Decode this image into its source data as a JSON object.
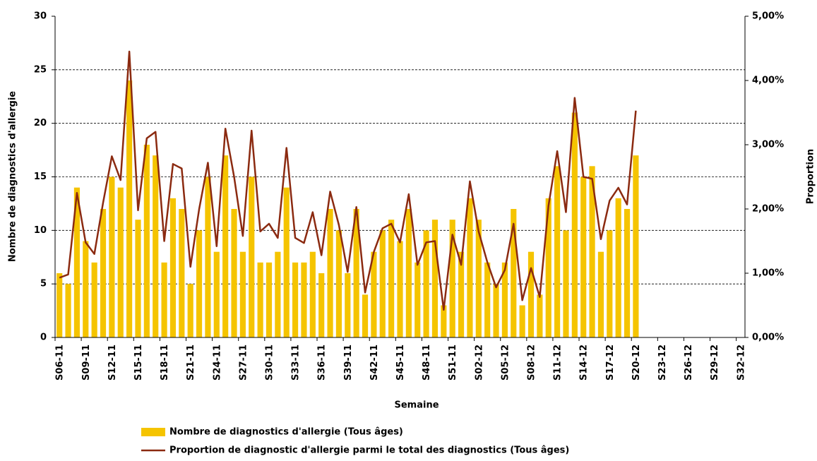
{
  "chart_data": {
    "type": "bar_line",
    "x_label": "Semaine",
    "y_label": "Nombre de diagnostics d'allergie",
    "y2_label": "Proportion",
    "categories": [
      "S06-11",
      null,
      null,
      "S09-11",
      null,
      null,
      "S12-11",
      null,
      null,
      "S15-11",
      null,
      null,
      "S18-11",
      null,
      null,
      "S21-11",
      null,
      null,
      "S24-11",
      null,
      null,
      "S27-11",
      null,
      null,
      "S30-11",
      null,
      null,
      "S33-11",
      null,
      null,
      "S36-11",
      null,
      null,
      "S39-11",
      null,
      null,
      "S42-11",
      null,
      null,
      "S45-11",
      null,
      null,
      "S48-11",
      null,
      null,
      "S51-11",
      null,
      null,
      "S02-12",
      null,
      null,
      "S05-12",
      null,
      null,
      "S08-12",
      null,
      null,
      "S11-12",
      null,
      null,
      "S14-12",
      null,
      null,
      "S17-12",
      null,
      null,
      "S20-12",
      null,
      null,
      "S23-12",
      null,
      null,
      "S26-12",
      null,
      null,
      "S29-12",
      null,
      null,
      "S32-12"
    ],
    "series": [
      {
        "name": "Nombre de diagnostics d'allergie (Tous âges)",
        "type": "bar",
        "color": "#f5c400",
        "axis": "y",
        "values": [
          6,
          5,
          14,
          9,
          7,
          12,
          15,
          14,
          24,
          11,
          18,
          17,
          7,
          13,
          12,
          5,
          10,
          15,
          8,
          17,
          12,
          8,
          15,
          7,
          7,
          8,
          14,
          7,
          7,
          8,
          6,
          12,
          10,
          6,
          12,
          4,
          8,
          10,
          11,
          9,
          12,
          7,
          10,
          11,
          3,
          11,
          8,
          13,
          11,
          7,
          5,
          7,
          12,
          3,
          8,
          4,
          13,
          16,
          10,
          21,
          15,
          16,
          8,
          10,
          13,
          12,
          17,
          null,
          null,
          null,
          null,
          null,
          null,
          null,
          null,
          null,
          null,
          null,
          null
        ]
      },
      {
        "name": "Proportion de diagnostic d'allergie parmi le total des diagnostics (Tous âges)",
        "type": "line",
        "color": "#8b2a10",
        "axis": "y2",
        "values": [
          0.93,
          0.98,
          2.25,
          1.48,
          1.3,
          2.1,
          2.82,
          2.45,
          4.45,
          1.98,
          3.1,
          3.2,
          1.5,
          2.7,
          2.63,
          1.1,
          2.0,
          2.72,
          1.42,
          3.25,
          2.5,
          1.58,
          3.22,
          1.65,
          1.77,
          1.55,
          2.95,
          1.55,
          1.47,
          1.95,
          1.28,
          2.27,
          1.75,
          1.02,
          2.03,
          0.7,
          1.33,
          1.7,
          1.77,
          1.48,
          2.23,
          1.13,
          1.48,
          1.5,
          0.43,
          1.6,
          1.13,
          2.43,
          1.65,
          1.17,
          0.78,
          1.05,
          1.77,
          0.58,
          1.08,
          0.63,
          2.05,
          2.9,
          1.95,
          3.73,
          2.5,
          2.47,
          1.53,
          2.13,
          2.33,
          2.07,
          3.53,
          null,
          null,
          null,
          null,
          null,
          null,
          null,
          null,
          null,
          null,
          null,
          null
        ]
      }
    ],
    "ylim": [
      0,
      30
    ],
    "yticks": [
      0,
      5,
      10,
      15,
      20,
      25,
      30
    ],
    "y2lim": [
      0,
      5
    ],
    "y2ticks": [
      {
        "value": 0,
        "label": "0,00%"
      },
      {
        "value": 1,
        "label": "1,00%"
      },
      {
        "value": 2,
        "label": "2,00%"
      },
      {
        "value": 3,
        "label": "3,00%"
      },
      {
        "value": 4,
        "label": "4,00%"
      },
      {
        "value": 5,
        "label": "5,00%"
      }
    ],
    "grid": true,
    "legend": "bottom"
  }
}
